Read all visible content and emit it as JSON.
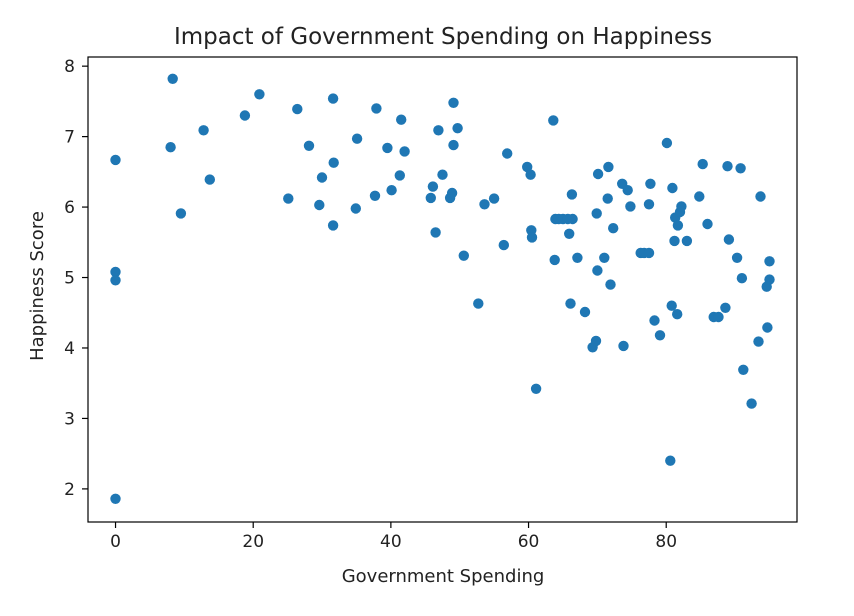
{
  "chart_data": {
    "type": "scatter",
    "title": "Impact of Government Spending on Happiness",
    "xlabel": "Government Spending",
    "ylabel": "Happiness Score",
    "xlim": [
      -4,
      99
    ],
    "ylim": [
      1.53,
      8.13
    ],
    "xticks": [
      0,
      20,
      40,
      60,
      80
    ],
    "yticks": [
      2,
      3,
      4,
      5,
      6,
      7,
      8
    ],
    "grid": false,
    "point_color": "#1f77b4",
    "points": [
      [
        0,
        6.67
      ],
      [
        0,
        5.08
      ],
      [
        0,
        4.96
      ],
      [
        0,
        1.86
      ],
      [
        8,
        6.85
      ],
      [
        8.3,
        7.82
      ],
      [
        9.5,
        5.91
      ],
      [
        12.8,
        7.09
      ],
      [
        13.7,
        6.39
      ],
      [
        18.8,
        7.3
      ],
      [
        20.9,
        7.6
      ],
      [
        25.1,
        6.12
      ],
      [
        26.4,
        7.39
      ],
      [
        28.1,
        6.87
      ],
      [
        29.6,
        6.03
      ],
      [
        30.0,
        6.42
      ],
      [
        31.6,
        5.74
      ],
      [
        31.7,
        6.63
      ],
      [
        31.6,
        7.54
      ],
      [
        34.9,
        5.98
      ],
      [
        35.1,
        6.97
      ],
      [
        37.7,
        6.16
      ],
      [
        37.9,
        7.4
      ],
      [
        39.5,
        6.84
      ],
      [
        40.1,
        6.24
      ],
      [
        41.3,
        6.45
      ],
      [
        41.5,
        7.24
      ],
      [
        42.0,
        6.79
      ],
      [
        45.8,
        6.13
      ],
      [
        46.1,
        6.29
      ],
      [
        46.5,
        5.64
      ],
      [
        46.9,
        7.09
      ],
      [
        47.5,
        6.46
      ],
      [
        48.6,
        6.13
      ],
      [
        48.9,
        6.2
      ],
      [
        49.1,
        6.88
      ],
      [
        49.1,
        7.48
      ],
      [
        49.7,
        7.12
      ],
      [
        50.6,
        5.31
      ],
      [
        52.7,
        4.63
      ],
      [
        53.6,
        6.04
      ],
      [
        55.0,
        6.12
      ],
      [
        56.4,
        5.46
      ],
      [
        56.9,
        6.76
      ],
      [
        59.8,
        6.57
      ],
      [
        60.3,
        6.46
      ],
      [
        60.4,
        5.67
      ],
      [
        60.5,
        5.57
      ],
      [
        61.1,
        3.42
      ],
      [
        63.6,
        7.23
      ],
      [
        63.8,
        5.25
      ],
      [
        63.9,
        5.83
      ],
      [
        64.4,
        5.83
      ],
      [
        65.0,
        5.83
      ],
      [
        65.7,
        5.83
      ],
      [
        65.9,
        5.62
      ],
      [
        66.1,
        4.63
      ],
      [
        66.4,
        5.83
      ],
      [
        66.3,
        6.18
      ],
      [
        67.1,
        5.28
      ],
      [
        68.2,
        4.51
      ],
      [
        69.3,
        4.01
      ],
      [
        69.8,
        4.1
      ],
      [
        69.9,
        5.91
      ],
      [
        70.0,
        5.1
      ],
      [
        70.1,
        6.47
      ],
      [
        71.0,
        5.28
      ],
      [
        71.5,
        6.12
      ],
      [
        71.6,
        6.57
      ],
      [
        71.9,
        4.9
      ],
      [
        72.3,
        5.7
      ],
      [
        73.6,
        6.33
      ],
      [
        73.8,
        4.03
      ],
      [
        74.4,
        6.24
      ],
      [
        74.8,
        6.01
      ],
      [
        76.3,
        5.35
      ],
      [
        76.8,
        5.35
      ],
      [
        77.5,
        5.35
      ],
      [
        77.5,
        6.04
      ],
      [
        77.7,
        6.33
      ],
      [
        78.3,
        4.39
      ],
      [
        79.1,
        4.18
      ],
      [
        80.1,
        6.91
      ],
      [
        80.6,
        2.4
      ],
      [
        80.8,
        4.6
      ],
      [
        80.9,
        6.27
      ],
      [
        81.2,
        5.52
      ],
      [
        81.3,
        5.85
      ],
      [
        81.6,
        4.48
      ],
      [
        81.7,
        5.74
      ],
      [
        82.0,
        5.93
      ],
      [
        82.2,
        6.01
      ],
      [
        83.0,
        5.52
      ],
      [
        84.8,
        6.15
      ],
      [
        85.3,
        6.61
      ],
      [
        86.0,
        5.76
      ],
      [
        86.9,
        4.44
      ],
      [
        87.6,
        4.44
      ],
      [
        88.6,
        4.57
      ],
      [
        88.9,
        6.58
      ],
      [
        89.1,
        5.54
      ],
      [
        90.3,
        5.28
      ],
      [
        90.8,
        6.55
      ],
      [
        91.0,
        4.99
      ],
      [
        91.2,
        3.69
      ],
      [
        92.4,
        3.21
      ],
      [
        93.4,
        4.09
      ],
      [
        93.7,
        6.15
      ],
      [
        94.6,
        4.87
      ],
      [
        94.7,
        4.29
      ],
      [
        95.0,
        5.23
      ],
      [
        95.0,
        4.97
      ]
    ]
  }
}
